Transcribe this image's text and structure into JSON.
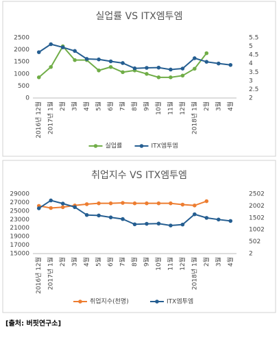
{
  "chart_data": [
    {
      "type": "line",
      "title": "실업률 VS ITX엠투엠",
      "categories": [
        "2016년 12월",
        "2017년 1월",
        "2월",
        "3월",
        "4월",
        "5월",
        "6월",
        "7월",
        "8월",
        "9월",
        "10월",
        "11월",
        "12월",
        "2018년 1월",
        "2월",
        "3월",
        "4월"
      ],
      "series": [
        {
          "name": "실업률",
          "color": "#70ad47",
          "axis": "y2",
          "values": [
            3.2,
            3.8,
            5.0,
            4.2,
            4.2,
            3.6,
            3.8,
            3.5,
            3.6,
            3.4,
            3.2,
            3.2,
            3.3,
            3.7,
            4.6,
            null,
            null
          ]
        },
        {
          "name": "ITX엠투엠",
          "color": "#255e91",
          "axis": "y",
          "values": [
            1900,
            2230,
            2100,
            1950,
            1620,
            1600,
            1520,
            1450,
            1230,
            1250,
            1260,
            1180,
            1220,
            1650,
            1500,
            1430,
            1370
          ]
        }
      ],
      "ylim": [
        0,
        2500
      ],
      "yticks": [
        0,
        500,
        1000,
        1500,
        2000,
        2500
      ],
      "y2lim": [
        2,
        5.5
      ],
      "y2ticks": [
        2,
        2.5,
        3,
        3.5,
        4,
        4.5,
        5,
        5.5
      ],
      "grid": false,
      "legend": "bottom"
    },
    {
      "type": "line",
      "title": "취업지수 VS ITX엠투엠",
      "categories": [
        "2016년 12월",
        "2017년 1월",
        "2월",
        "3월",
        "4월",
        "5월",
        "6월",
        "7월",
        "8월",
        "9월",
        "10월",
        "11월",
        "12월",
        "2018년 1월",
        "2월",
        "3월",
        "4월"
      ],
      "series": [
        {
          "name": "취업지수(천명)",
          "color": "#ed7d31",
          "axis": "y",
          "values": [
            26200,
            25700,
            25900,
            26300,
            26600,
            26800,
            26800,
            26900,
            26800,
            26800,
            26800,
            26800,
            26500,
            26300,
            27300,
            null,
            null
          ]
        },
        {
          "name": "ITX엠투엠",
          "color": "#255e91",
          "axis": "y2",
          "values": [
            1900,
            2230,
            2100,
            1950,
            1620,
            1600,
            1520,
            1450,
            1230,
            1250,
            1260,
            1180,
            1220,
            1650,
            1500,
            1430,
            1370
          ]
        }
      ],
      "ylim": [
        15000,
        29000
      ],
      "yticks": [
        15000,
        17000,
        19000,
        21000,
        23000,
        25000,
        27000,
        29000
      ],
      "y2lim": [
        2,
        2502
      ],
      "y2ticks": [
        2,
        502,
        1002,
        1502,
        2002,
        2502
      ],
      "grid": false,
      "legend": "bottom"
    }
  ],
  "source": "[출처: 버핏연구소]"
}
